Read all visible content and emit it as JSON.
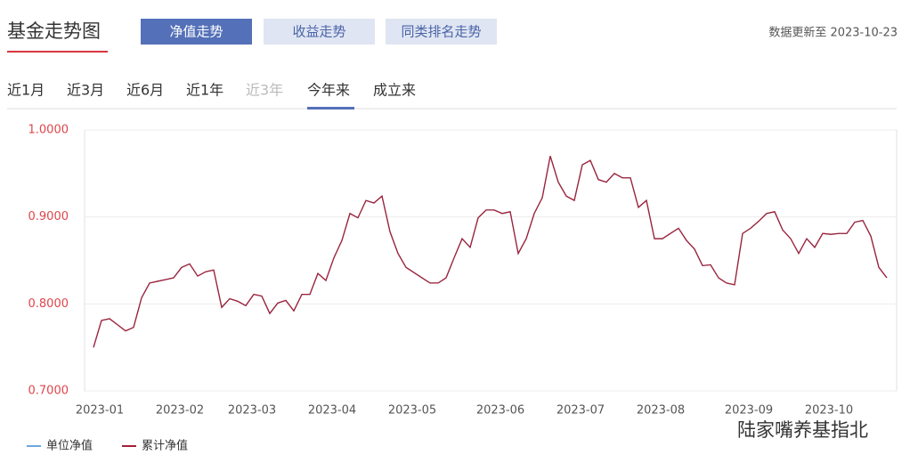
{
  "header": {
    "title": "基金走势图",
    "tabs": [
      "净值走势",
      "收益走势",
      "同类排名走势"
    ],
    "updated": "数据更新至 2023-10-23"
  },
  "periods": [
    "近1月",
    "近3月",
    "近6月",
    "近1年",
    "近3年",
    "今年来",
    "成立来"
  ],
  "watermark": "陆家嘴养基指北",
  "chart_data": {
    "type": "line",
    "categories": [
      null,
      "2023-01",
      null,
      null,
      null,
      null,
      null,
      null,
      null,
      null,
      null,
      "2023-02",
      null,
      null,
      null,
      null,
      null,
      null,
      null,
      null,
      "2023-03",
      null,
      null,
      null,
      null,
      null,
      null,
      null,
      null,
      null,
      "2023-04",
      null,
      null,
      null,
      null,
      null,
      null,
      null,
      null,
      null,
      "2023-05",
      null,
      null,
      null,
      null,
      null,
      null,
      null,
      null,
      null,
      null,
      "2023-06",
      null,
      null,
      null,
      null,
      null,
      null,
      null,
      null,
      null,
      "2023-07",
      null,
      null,
      null,
      null,
      null,
      null,
      null,
      null,
      null,
      "2023-08",
      null,
      null,
      null,
      null,
      null,
      null,
      null,
      null,
      null,
      null,
      "2023-09",
      null,
      null,
      null,
      null,
      null,
      null,
      null,
      null,
      null,
      "2023-10",
      null,
      null,
      null,
      null,
      null,
      null,
      null
    ],
    "series": [
      {
        "name": "单位净值",
        "color": "#6fa8dc",
        "values": [
          0.75,
          0.781,
          0.783,
          0.776,
          0.769,
          0.773,
          0.807,
          0.824,
          0.826,
          0.828,
          0.83,
          0.842,
          0.846,
          0.832,
          0.837,
          0.839,
          0.796,
          0.806,
          0.803,
          0.798,
          0.811,
          0.809,
          0.789,
          0.801,
          0.804,
          0.792,
          0.811,
          0.811,
          0.835,
          0.827,
          0.853,
          0.873,
          0.904,
          0.899,
          0.919,
          0.916,
          0.924,
          0.883,
          0.858,
          0.842,
          0.836,
          0.83,
          0.824,
          0.824,
          0.83,
          0.853,
          0.875,
          0.865,
          0.899,
          0.908,
          0.908,
          0.904,
          0.906,
          0.858,
          0.875,
          0.904,
          0.922,
          0.97,
          0.94,
          0.924,
          0.919,
          0.96,
          0.965,
          0.943,
          0.94,
          0.95,
          0.945,
          0.945,
          0.911,
          0.919,
          0.875,
          0.875,
          0.881,
          0.887,
          0.873,
          0.863,
          0.844,
          0.845,
          0.83,
          0.824,
          0.822,
          0.881,
          0.887,
          0.895,
          0.904,
          0.906,
          0.885,
          0.875,
          0.858,
          0.875,
          0.865,
          0.881,
          0.88,
          0.881,
          0.881,
          0.894,
          0.896,
          0.878,
          0.842,
          0.83
        ]
      },
      {
        "name": "累计净值",
        "color": "#a32035",
        "values": [
          0.75,
          0.781,
          0.783,
          0.776,
          0.769,
          0.773,
          0.807,
          0.824,
          0.826,
          0.828,
          0.83,
          0.842,
          0.846,
          0.832,
          0.837,
          0.839,
          0.796,
          0.806,
          0.803,
          0.798,
          0.811,
          0.809,
          0.789,
          0.801,
          0.804,
          0.792,
          0.811,
          0.811,
          0.835,
          0.827,
          0.853,
          0.873,
          0.904,
          0.899,
          0.919,
          0.916,
          0.924,
          0.883,
          0.858,
          0.842,
          0.836,
          0.83,
          0.824,
          0.824,
          0.83,
          0.853,
          0.875,
          0.865,
          0.899,
          0.908,
          0.908,
          0.904,
          0.906,
          0.858,
          0.875,
          0.904,
          0.922,
          0.97,
          0.94,
          0.924,
          0.919,
          0.96,
          0.965,
          0.943,
          0.94,
          0.95,
          0.945,
          0.945,
          0.911,
          0.919,
          0.875,
          0.875,
          0.881,
          0.887,
          0.873,
          0.863,
          0.844,
          0.845,
          0.83,
          0.824,
          0.822,
          0.881,
          0.887,
          0.895,
          0.904,
          0.906,
          0.885,
          0.875,
          0.858,
          0.875,
          0.865,
          0.881,
          0.88,
          0.881,
          0.881,
          0.894,
          0.896,
          0.878,
          0.842,
          0.83
        ]
      }
    ],
    "ylim": [
      0.7,
      1.0
    ],
    "yticks": [
      {
        "value": 0.7,
        "label": "0.7000"
      },
      {
        "value": 0.8,
        "label": "0.8000"
      },
      {
        "value": 0.9,
        "label": "0.9000"
      },
      {
        "value": 1.0,
        "label": "1.0000"
      }
    ],
    "grid": true
  }
}
